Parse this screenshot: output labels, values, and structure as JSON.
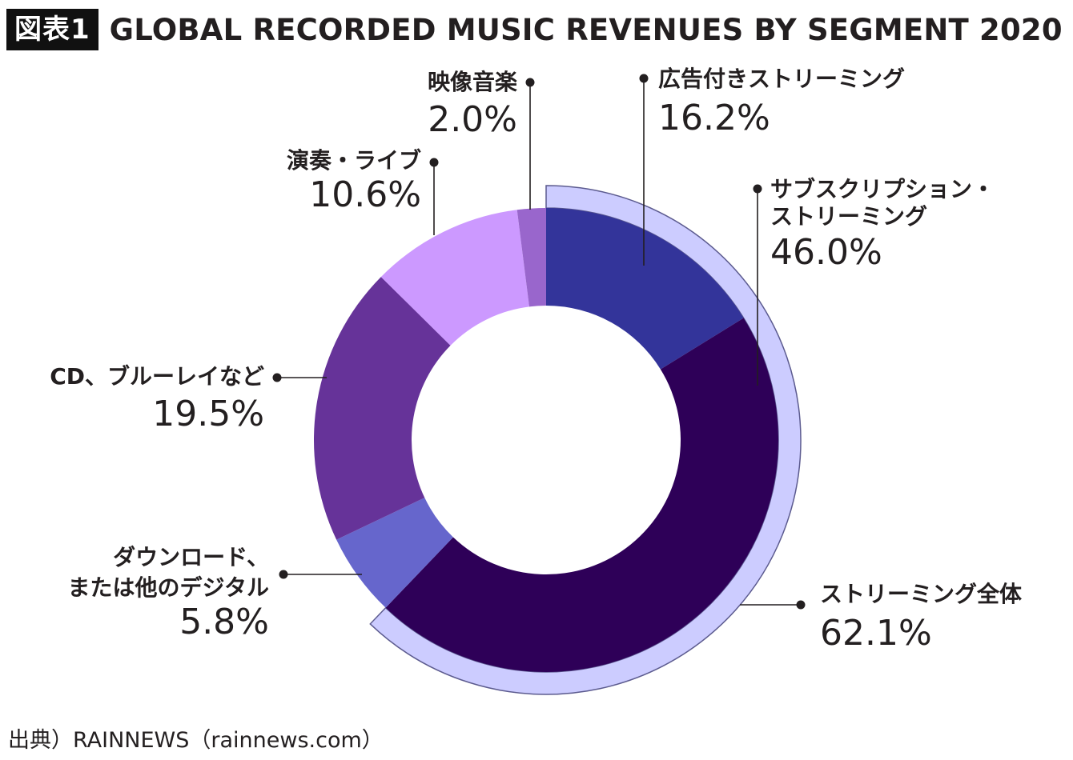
{
  "header": {
    "badge": "図表1",
    "title": "GLOBAL RECORDED MUSIC REVENUES BY SEGMENT 2020"
  },
  "source": "出典）RAINNEWS（rainnews.com）",
  "chart_data": {
    "type": "pie",
    "title": "GLOBAL RECORDED MUSIC REVENUES BY SEGMENT 2020",
    "unit": "%",
    "slices": [
      {
        "label_lines": [
          "広告付きストリーミング"
        ],
        "value": 16.2,
        "value_label": "16.2%",
        "color": "#33349a"
      },
      {
        "label_lines": [
          "サブスクリプション・",
          "ストリーミング"
        ],
        "value": 46.0,
        "value_label": "46.0%",
        "color": "#2e0058"
      },
      {
        "label_lines": [
          "ダウンロード、",
          "または他のデジタル"
        ],
        "value": 5.8,
        "value_label": "5.8%",
        "color": "#6666cc"
      },
      {
        "label_lines": [
          "CD、ブルーレイなど"
        ],
        "value": 19.5,
        "value_label": "19.5%",
        "color": "#663399"
      },
      {
        "label_lines": [
          "演奏・ライブ"
        ],
        "value": 10.6,
        "value_label": "10.6%",
        "color": "#cc99ff"
      },
      {
        "label_lines": [
          "映像音楽"
        ],
        "value": 2.0,
        "value_label": "2.0%",
        "color": "#9966cc"
      }
    ],
    "group": {
      "label_lines": [
        "ストリーミング全体"
      ],
      "value": 62.1,
      "value_label": "62.1%",
      "color": "#ccccff"
    }
  }
}
